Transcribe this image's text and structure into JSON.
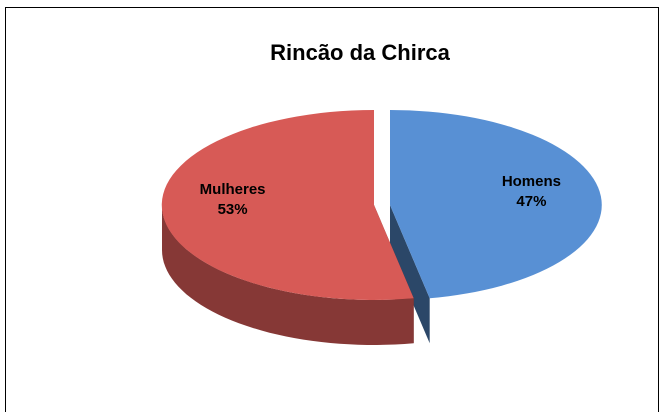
{
  "chart_data": {
    "type": "pie",
    "title": "Rincão da Chirca",
    "categories": [
      "Homens",
      "Mulheres"
    ],
    "values": [
      47,
      53
    ],
    "value_labels": [
      "47%",
      "53%"
    ],
    "colors": [
      "#4f81bd",
      "#c0504d"
    ]
  }
}
